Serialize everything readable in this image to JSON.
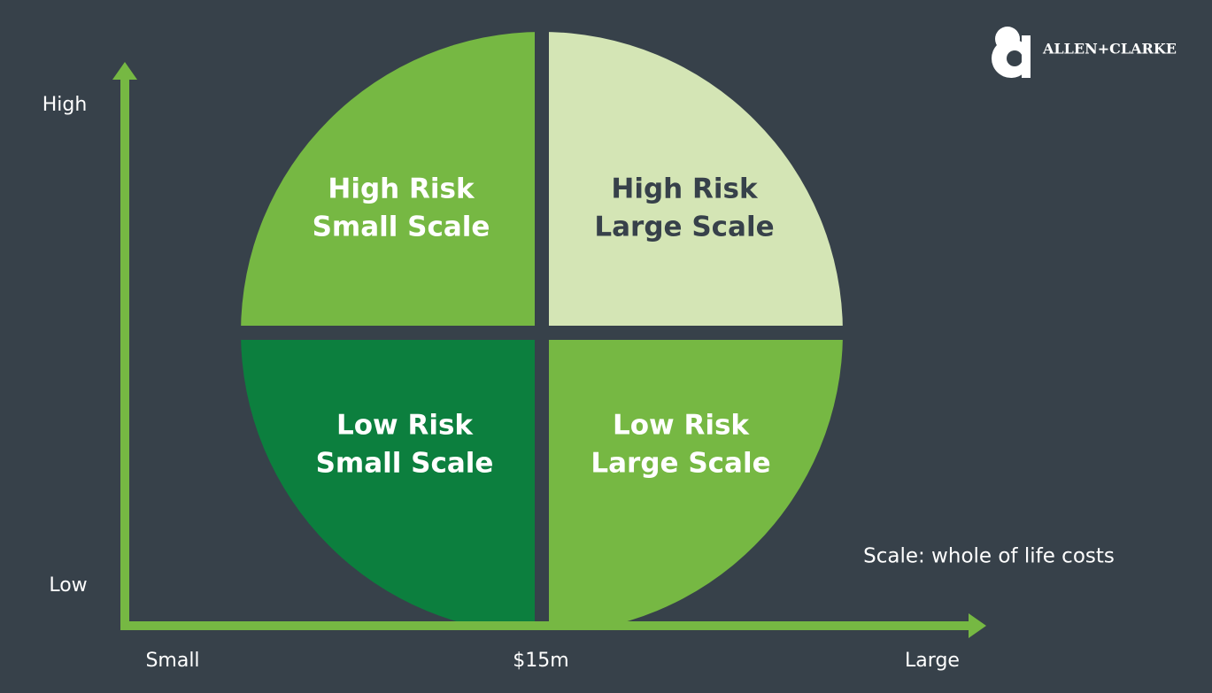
{
  "logo": {
    "text": "ALLEN+CLARKE"
  },
  "y_axis": {
    "high": "High",
    "low": "Low"
  },
  "x_axis": {
    "small": "Small",
    "middle": "$15m",
    "large": "Large"
  },
  "note": "Scale: whole of life costs",
  "quadrants": [
    {
      "lines": [
        "High Risk",
        "Small Scale"
      ]
    },
    {
      "lines": [
        "High Risk",
        "Large Scale"
      ]
    },
    {
      "lines": [
        "Low Risk",
        "Small Scale"
      ]
    },
    {
      "lines": [
        "Low Risk",
        "Large Scale"
      ]
    }
  ]
}
